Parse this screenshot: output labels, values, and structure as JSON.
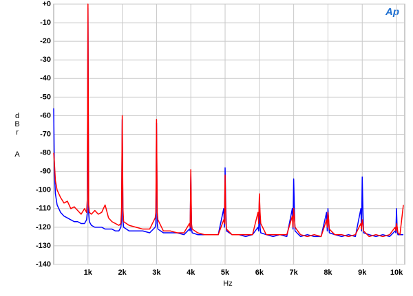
{
  "chart_data": {
    "type": "line",
    "logo": "Ap",
    "xlabel": "Hz",
    "ylabel_lines": [
      "dBr",
      "A"
    ],
    "grid": true,
    "xlim": [
      0,
      10240
    ],
    "ylim": [
      -140,
      0
    ],
    "yticks": [
      {
        "value": 0,
        "label": "+0"
      },
      -10,
      -20,
      -30,
      -40,
      -50,
      -60,
      -70,
      -80,
      -90,
      -100,
      -110,
      -120,
      -130,
      -140
    ],
    "xticks": [
      {
        "value": 1000,
        "label": "1k"
      },
      {
        "value": 2000,
        "label": "2k"
      },
      {
        "value": 3000,
        "label": "3k"
      },
      {
        "value": 4000,
        "label": "4k"
      },
      {
        "value": 5000,
        "label": "5k"
      },
      {
        "value": 6000,
        "label": "6k"
      },
      {
        "value": 7000,
        "label": "7k"
      },
      {
        "value": 8000,
        "label": "8k"
      },
      {
        "value": 9000,
        "label": "9k"
      },
      {
        "value": 10000,
        "label": "10k"
      }
    ],
    "x": [
      0,
      20,
      50,
      100,
      150,
      200,
      300,
      400,
      500,
      600,
      700,
      800,
      900,
      960,
      980,
      1000,
      1020,
      1040,
      1100,
      1200,
      1300,
      1400,
      1500,
      1600,
      1700,
      1800,
      1900,
      1960,
      1980,
      2000,
      2020,
      2040,
      2200,
      2400,
      2600,
      2800,
      2960,
      2980,
      3000,
      3020,
      3040,
      3200,
      3400,
      3600,
      3800,
      3960,
      3980,
      4000,
      4020,
      4040,
      4200,
      4400,
      4600,
      4800,
      4960,
      4980,
      5000,
      5020,
      5040,
      5200,
      5400,
      5600,
      5800,
      5960,
      5980,
      6000,
      6020,
      6040,
      6200,
      6400,
      6600,
      6800,
      6960,
      6980,
      7000,
      7020,
      7040,
      7200,
      7400,
      7600,
      7800,
      7960,
      7980,
      8000,
      8020,
      8040,
      8200,
      8400,
      8600,
      8800,
      8960,
      8980,
      9000,
      9020,
      9040,
      9200,
      9400,
      9600,
      9800,
      9960,
      9980,
      10000,
      10020,
      10040,
      10100,
      10200
    ],
    "series": [
      {
        "color": "#0000ff",
        "values": [
          -56,
          -90,
          -102,
          -108,
          -110,
          -112,
          -114,
          -115,
          -116,
          -117,
          -117,
          -118,
          -118,
          -116,
          -112,
          -2,
          -112,
          -117,
          -119,
          -120,
          -120,
          -120,
          -121,
          -121,
          -121,
          -122,
          -122,
          -120,
          -116,
          -62,
          -116,
          -120,
          -122,
          -122,
          -122,
          -123,
          -120,
          -118,
          -64,
          -118,
          -121,
          -123,
          -123,
          -123,
          -124,
          -121,
          -122,
          -91,
          -121,
          -123,
          -124,
          -124,
          -124,
          -124,
          -110,
          -120,
          -88,
          -110,
          -122,
          -124,
          -124,
          -125,
          -124,
          -120,
          -122,
          -104,
          -120,
          -123,
          -124,
          -125,
          -124,
          -125,
          -110,
          -121,
          -94,
          -110,
          -122,
          -125,
          -124,
          -125,
          -125,
          -112,
          -122,
          -110,
          -116,
          -123,
          -124,
          -125,
          -124,
          -125,
          -110,
          -122,
          -93,
          -110,
          -123,
          -124,
          -125,
          -124,
          -125,
          -122,
          -123,
          -110,
          -122,
          -124,
          -124,
          -124
        ]
      },
      {
        "color": "#ff0000",
        "values": [
          -80,
          -85,
          -95,
          -100,
          -102,
          -104,
          -107,
          -106,
          -110,
          -109,
          -111,
          -113,
          -110,
          -112,
          -105,
          0,
          -108,
          -112,
          -113,
          -111,
          -113,
          -112,
          -108,
          -115,
          -117,
          -118,
          -119,
          -118,
          -110,
          -60,
          -110,
          -117,
          -119,
          -120,
          -121,
          -121,
          -115,
          -112,
          -62,
          -112,
          -116,
          -122,
          -122,
          -123,
          -123,
          -118,
          -120,
          -89,
          -118,
          -121,
          -123,
          -124,
          -124,
          -124,
          -116,
          -118,
          -92,
          -116,
          -121,
          -124,
          -124,
          -124,
          -124,
          -112,
          -118,
          -102,
          -112,
          -118,
          -124,
          -124,
          -124,
          -124,
          -114,
          -120,
          -110,
          -114,
          -120,
          -124,
          -125,
          -124,
          -125,
          -116,
          -120,
          -112,
          -116,
          -121,
          -124,
          -124,
          -125,
          -124,
          -118,
          -121,
          -116,
          -118,
          -122,
          -125,
          -124,
          -125,
          -124,
          -120,
          -122,
          -118,
          -120,
          -123,
          -124,
          -108
        ]
      }
    ]
  }
}
